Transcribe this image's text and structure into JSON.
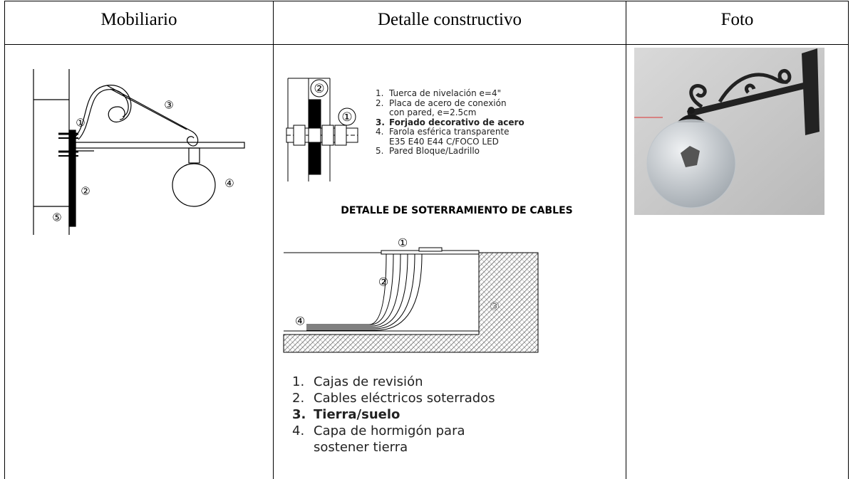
{
  "table": {
    "headers": [
      "Mobiliario",
      "Detalle constructivo",
      "Foto"
    ]
  },
  "mobiliario": {
    "labels": [
      "①",
      "②",
      "③",
      "④",
      "⑤"
    ]
  },
  "detalle": {
    "drawing_labels": [
      "②",
      "①"
    ],
    "items": [
      {
        "number": "1.",
        "lines": [
          "Tuerca de nivelación e=4\""
        ]
      },
      {
        "number": "2.",
        "lines": [
          "Placa de acero de conexión",
          "con pared, e=2.5cm"
        ]
      },
      {
        "number": "3.",
        "lines": [
          "Forjado decorativo de acero"
        ],
        "bold": true
      },
      {
        "number": "4.",
        "lines": [
          "Farola esférica transparente",
          "E35 E40 E44 C/FOCO LED"
        ]
      },
      {
        "number": "5.",
        "lines": [
          "Pared Bloque/Ladrillo"
        ]
      }
    ],
    "subtitle": "DETALLE DE SOTERRAMIENTO DE CABLES",
    "cables_labels": [
      "①",
      "②",
      "③",
      "④"
    ],
    "cables_items": [
      {
        "number": "1.",
        "lines": [
          "Cajas de revisión"
        ]
      },
      {
        "number": "2.",
        "lines": [
          "Cables eléctricos soterrados"
        ]
      },
      {
        "number": "3.",
        "lines": [
          "Tierra/suelo"
        ],
        "bold": true
      },
      {
        "number": "4.",
        "lines": [
          "Capa de hormigón para",
          "sostener tierra"
        ]
      }
    ]
  }
}
